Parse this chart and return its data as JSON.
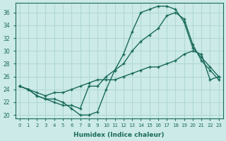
{
  "title": "",
  "xlabel": "Humidex (Indice chaleur)",
  "ylabel": "",
  "bg_color": "#cceae8",
  "line_color": "#1a6b5a",
  "grid_color": "#b0d8d5",
  "xlim": [
    -0.5,
    23.5
  ],
  "ylim": [
    19.5,
    37.5
  ],
  "yticks": [
    20,
    22,
    24,
    26,
    28,
    30,
    32,
    34,
    36
  ],
  "xticks": [
    0,
    1,
    2,
    3,
    4,
    5,
    6,
    7,
    8,
    9,
    10,
    11,
    12,
    13,
    14,
    15,
    16,
    17,
    18,
    19,
    20,
    21,
    22,
    23
  ],
  "line1_x": [
    0,
    1,
    2,
    3,
    4,
    5,
    6,
    7,
    8,
    9,
    10,
    11,
    12,
    13,
    14,
    15,
    16,
    17,
    18,
    19,
    20,
    21,
    22,
    23
  ],
  "line1_y": [
    24.5,
    24.0,
    23.0,
    22.5,
    22.5,
    22.0,
    21.0,
    20.0,
    20.0,
    20.5,
    24.0,
    27.0,
    29.5,
    33.0,
    36.0,
    36.5,
    37.0,
    37.0,
    36.5,
    34.5,
    30.5,
    29.0,
    27.5,
    26.0
  ],
  "line2_x": [
    0,
    1,
    2,
    3,
    4,
    5,
    6,
    7,
    8,
    9,
    10,
    11,
    12,
    13,
    14,
    15,
    16,
    17,
    18,
    19,
    20,
    21,
    22,
    23
  ],
  "line2_y": [
    24.5,
    24.0,
    23.0,
    22.5,
    22.0,
    21.5,
    21.5,
    21.0,
    24.5,
    24.5,
    26.0,
    27.0,
    28.0,
    30.0,
    31.5,
    32.5,
    33.5,
    35.5,
    36.0,
    35.0,
    31.0,
    28.5,
    27.0,
    25.5
  ],
  "line3_x": [
    0,
    1,
    2,
    3,
    4,
    5,
    6,
    7,
    8,
    9,
    10,
    11,
    12,
    13,
    14,
    15,
    16,
    17,
    18,
    19,
    20,
    21,
    22,
    23
  ],
  "line3_y": [
    24.5,
    24.0,
    23.5,
    23.0,
    23.5,
    23.5,
    24.0,
    24.5,
    25.0,
    25.5,
    25.5,
    25.5,
    26.0,
    26.5,
    27.0,
    27.5,
    27.5,
    28.0,
    28.5,
    29.5,
    30.0,
    29.5,
    25.5,
    26.0
  ]
}
